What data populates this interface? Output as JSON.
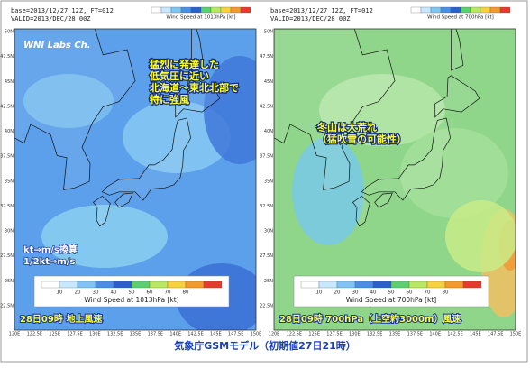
{
  "panels": [
    {
      "header": {
        "base": "base=2013/12/27 12Z, FT=012",
        "valid": "VALID=2013/DEC/28 00Z"
      },
      "colorbar_label": "Wind Speed at 1013hPa [kt]",
      "colorbar_ticks": [
        10,
        20,
        30,
        40,
        50,
        60,
        70,
        80
      ],
      "watermark": "WNI Labs Ch.",
      "annotation": [
        "猛烈に発達した",
        "低気圧に近い",
        "北海道〜東北北部で",
        "特に強風"
      ],
      "note": [
        "kt⇒m/s換算",
        "1/2kt⇒m/s"
      ],
      "caption": "28日09時 地上風速"
    },
    {
      "header": {
        "base": "base=2013/12/27 12Z, FT=012",
        "valid": "VALID=2013/DEC/28 00Z"
      },
      "colorbar_label": "Wind Speed at 700hPa [kt]",
      "colorbar_ticks": [
        10,
        20,
        30,
        40,
        50,
        60,
        70,
        80
      ],
      "annotation": [
        "冬山は大荒れ",
        "（猛吹雪の可能性）"
      ],
      "caption": "28日09時 700hPa（上空約3000m）風速"
    }
  ],
  "axes": {
    "lat_labels": [
      "50N",
      "47.5N",
      "45N",
      "42.5N",
      "40N",
      "37.5N",
      "35N",
      "32.5N",
      "30N",
      "27.5N",
      "25N",
      "22.5N"
    ],
    "lon_labels": [
      "120E",
      "122.5E",
      "125E",
      "127.5E",
      "130E",
      "132.5E",
      "135E",
      "137.5E",
      "140E",
      "142.5E",
      "145E",
      "147.5E",
      "150E"
    ]
  },
  "footer": "気象庁GSMモデル（初期値27日21時）"
}
